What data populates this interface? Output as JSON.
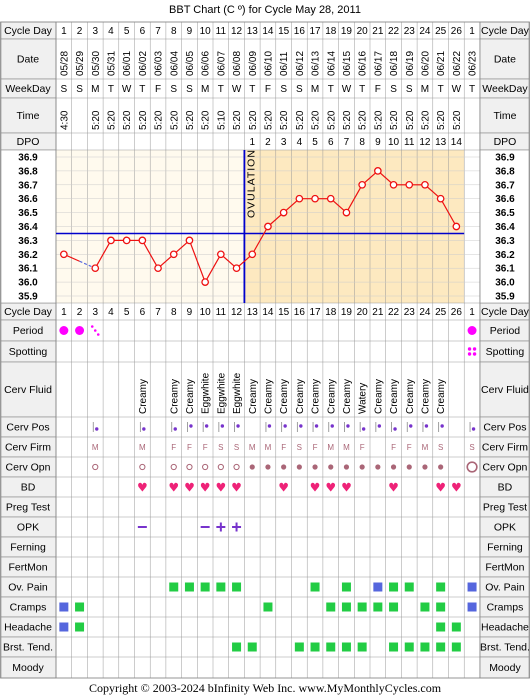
{
  "title": "BBT Chart (C º) for Cycle May 28, 2011",
  "copyright": "Copyright © 2003-2024 bInfinity Web Inc.    www.MyMonthlyCycles.com",
  "row_labels": {
    "cycle_day": "Cycle Day",
    "date": "Date",
    "weekday": "WeekDay",
    "time": "Time",
    "dpo": "DPO",
    "period": "Period",
    "spotting": "Spotting",
    "cerv_fluid": "Cerv Fluid",
    "cerv_pos": "Cerv Pos",
    "cerv_firm": "Cerv Firm",
    "cerv_opn": "Cerv Opn",
    "bd": "BD",
    "preg_test": "Preg Test",
    "opk": "OPK",
    "ferning": "Ferning",
    "fertmon": "FertMon",
    "ov_pain": "Ov. Pain",
    "cramps": "Cramps",
    "headache": "Headache",
    "brst_tend": "Brst. Tend.",
    "moody": "Moody"
  },
  "ovulation_label": "OVULATION",
  "colors": {
    "period": "#ff00ff",
    "temp_line": "#ee1111",
    "coverline": "#0000cc",
    "ovulation_line": "#0000cc",
    "pre_bg": "#fffaee",
    "post_bg": "#fde9c0",
    "green": "#22cc44",
    "blue": "#5566dd",
    "heart": "#ee2277",
    "purple": "#7733cc",
    "cervix_dot": "#aa6677",
    "label_col_bg": "#f0f0f0"
  },
  "chart_data": {
    "type": "line",
    "days": [
      1,
      2,
      3,
      4,
      5,
      6,
      7,
      8,
      9,
      10,
      11,
      12,
      13,
      14,
      15,
      16,
      17,
      18,
      19,
      20,
      21,
      22,
      23,
      24,
      25,
      26,
      1
    ],
    "dates": [
      "05/28",
      "05/29",
      "05/30",
      "05/31",
      "06/01",
      "06/02",
      "06/03",
      "06/04",
      "06/05",
      "06/06",
      "06/07",
      "06/08",
      "06/09",
      "06/10",
      "06/11",
      "06/12",
      "06/13",
      "06/14",
      "06/15",
      "06/16",
      "06/17",
      "06/18",
      "06/19",
      "06/20",
      "06/21",
      "06/22",
      "06/23"
    ],
    "weekdays": [
      "S",
      "S",
      "M",
      "T",
      "W",
      "T",
      "F",
      "S",
      "S",
      "M",
      "T",
      "W",
      "T",
      "F",
      "S",
      "S",
      "M",
      "T",
      "W",
      "T",
      "F",
      "S",
      "S",
      "M",
      "T",
      "W",
      "T"
    ],
    "times": [
      "4:30",
      "",
      "5:20",
      "5:20",
      "5:20",
      "5:20",
      "5:20",
      "5:20",
      "5:20",
      "5:20",
      "5:10",
      "5:20",
      "5:20",
      "5:20",
      "5:20",
      "5:20",
      "5:20",
      "5:20",
      "5:20",
      "5:20",
      "5:20",
      "5:20",
      "5:20",
      "5:20",
      "5:20",
      "5:20",
      ""
    ],
    "dpo": [
      "",
      "",
      "",
      "",
      "",
      "",
      "",
      "",
      "",
      "",
      "",
      "",
      "1",
      "2",
      "3",
      "4",
      "5",
      "6",
      "7",
      "8",
      "9",
      "10",
      "11",
      "12",
      "13",
      "14",
      ""
    ],
    "temps": [
      36.2,
      36.15,
      36.1,
      36.3,
      36.3,
      36.3,
      36.1,
      36.2,
      36.3,
      36.0,
      36.2,
      36.1,
      36.2,
      36.4,
      36.5,
      36.6,
      36.6,
      36.6,
      36.5,
      36.7,
      36.8,
      36.7,
      36.7,
      36.7,
      36.6,
      36.4,
      null
    ],
    "y_ticks": [
      36.9,
      36.8,
      36.7,
      36.6,
      36.5,
      36.4,
      36.3,
      36.2,
      36.1,
      36.0,
      35.9
    ],
    "ylim": [
      35.9,
      36.9
    ],
    "coverline": 36.35,
    "ovulation_after_day_index": 11
  },
  "fluid": [
    "",
    "",
    "",
    "",
    "",
    "Creamy",
    "",
    "Creamy",
    "Creamy",
    "Eggwhite",
    "Eggwhite",
    "Eggwhite",
    "Creamy",
    "Creamy",
    "Creamy",
    "Creamy",
    "Creamy",
    "Creamy",
    "Creamy",
    "Watery",
    "Creamy",
    "Creamy",
    "Creamy",
    "Creamy",
    "Creamy",
    "",
    ""
  ],
  "period": [
    "heavy",
    "heavy",
    "spot",
    "",
    "",
    "",
    "",
    "",
    "",
    "",
    "",
    "",
    "",
    "",
    "",
    "",
    "",
    "",
    "",
    "",
    "",
    "",
    "",
    "",
    "",
    "",
    "heavy"
  ],
  "spotting": [
    "",
    "",
    "",
    "",
    "",
    "",
    "",
    "",
    "",
    "",
    "",
    "",
    "",
    "",
    "",
    "",
    "",
    "",
    "",
    "",
    "",
    "",
    "",
    "",
    "",
    "",
    "dots"
  ],
  "cerv_pos": [
    "",
    "",
    "low",
    "",
    "",
    "low",
    "",
    "low",
    "mid",
    "mid",
    "mid",
    "mid",
    "",
    "mid",
    "mid",
    "mid",
    "mid",
    "mid",
    "mid",
    "low",
    "mid",
    "low",
    "mid",
    "mid",
    "mid",
    "",
    "low"
  ],
  "cerv_firm": [
    "",
    "",
    "M",
    "",
    "",
    "M",
    "",
    "F",
    "F",
    "F",
    "S",
    "S",
    "M",
    "M",
    "F",
    "S",
    "F",
    "M",
    "M",
    "F",
    "",
    "F",
    "F",
    "M",
    "S",
    "",
    "S"
  ],
  "cerv_opn": [
    "",
    "",
    "o",
    "",
    "",
    "o",
    "",
    "o",
    "o",
    "o",
    "o",
    "o",
    "o",
    "o",
    "o",
    "o",
    "o",
    "o",
    "o",
    "o",
    "o",
    "o",
    "o",
    "o",
    "o",
    "",
    "O"
  ],
  "bd": [
    "",
    "",
    "",
    "",
    "",
    "heart",
    "",
    "heart",
    "heart",
    "heart",
    "heart",
    "heart",
    "",
    "",
    "heart",
    "",
    "heart",
    "heart",
    "heart",
    "",
    "",
    "heart",
    "",
    "",
    "heart",
    "heart",
    ""
  ],
  "opk": [
    "",
    "",
    "",
    "",
    "",
    "neg",
    "",
    "",
    "",
    "neg",
    "pos",
    "pos",
    "",
    "",
    "",
    "",
    "",
    "",
    "",
    "",
    "",
    "",
    "",
    "",
    "",
    "",
    ""
  ],
  "ov_pain": [
    "",
    "",
    "",
    "",
    "",
    "",
    "",
    "g",
    "g",
    "g",
    "g",
    "g",
    "",
    "",
    "",
    "",
    "g",
    "",
    "g",
    "",
    "b",
    "g",
    "g",
    "",
    "g",
    "",
    "b"
  ],
  "cramps": [
    "b",
    "g",
    "",
    "",
    "",
    "",
    "",
    "",
    "",
    "",
    "",
    "",
    "",
    "g",
    "",
    "",
    "",
    "g",
    "g",
    "g",
    "g",
    "g",
    "",
    "g",
    "g",
    "",
    "b"
  ],
  "headache": [
    "b",
    "g",
    "",
    "",
    "",
    "",
    "",
    "",
    "",
    "",
    "",
    "",
    "",
    "",
    "",
    "",
    "",
    "",
    "",
    "",
    "",
    "",
    "",
    "",
    "g",
    "g",
    ""
  ],
  "brst_tend": [
    "",
    "",
    "",
    "",
    "",
    "",
    "",
    "",
    "",
    "",
    "",
    "g",
    "g",
    "",
    "",
    "g",
    "g",
    "g",
    "g",
    "g",
    "",
    "g",
    "g",
    "g",
    "g",
    "g",
    ""
  ]
}
